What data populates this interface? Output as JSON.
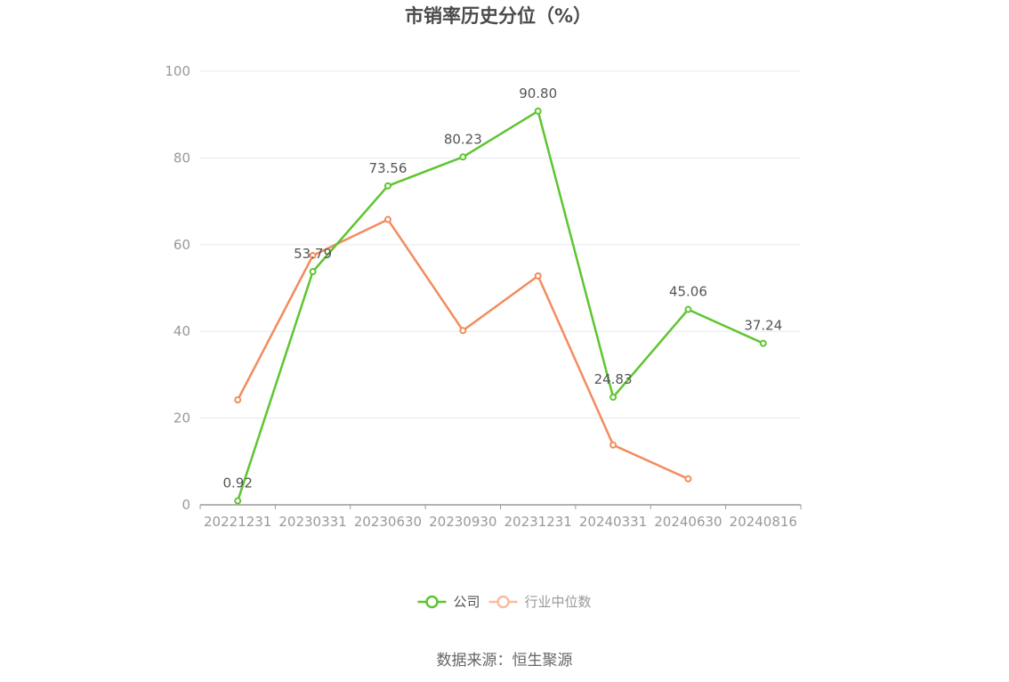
{
  "chart_data": {
    "type": "line",
    "title": "市销率历史分位（%）",
    "xlabel": "",
    "ylabel": "",
    "categories": [
      "20221231",
      "20230331",
      "20230630",
      "20230930",
      "20231231",
      "20240331",
      "20240630",
      "20240816"
    ],
    "ylim": [
      0,
      100
    ],
    "yticks": [
      0,
      20,
      40,
      60,
      80,
      100
    ],
    "grid": true,
    "legend_position": "bottom",
    "series": [
      {
        "name": "公司",
        "color": "#5ec52f",
        "values": [
          0.92,
          53.79,
          73.56,
          80.23,
          90.8,
          24.83,
          45.06,
          37.24
        ],
        "labels": [
          "0.92",
          "53.79",
          "73.56",
          "80.23",
          "90.80",
          "24.83",
          "45.06",
          "37.24"
        ]
      },
      {
        "name": "行业中位数",
        "color": "#f28c5e",
        "legend_color": "#f9bca2",
        "values": [
          24.2,
          57.5,
          65.8,
          40.2,
          52.8,
          13.8,
          6.0,
          null
        ]
      }
    ],
    "source": "数据来源：恒生聚源"
  }
}
